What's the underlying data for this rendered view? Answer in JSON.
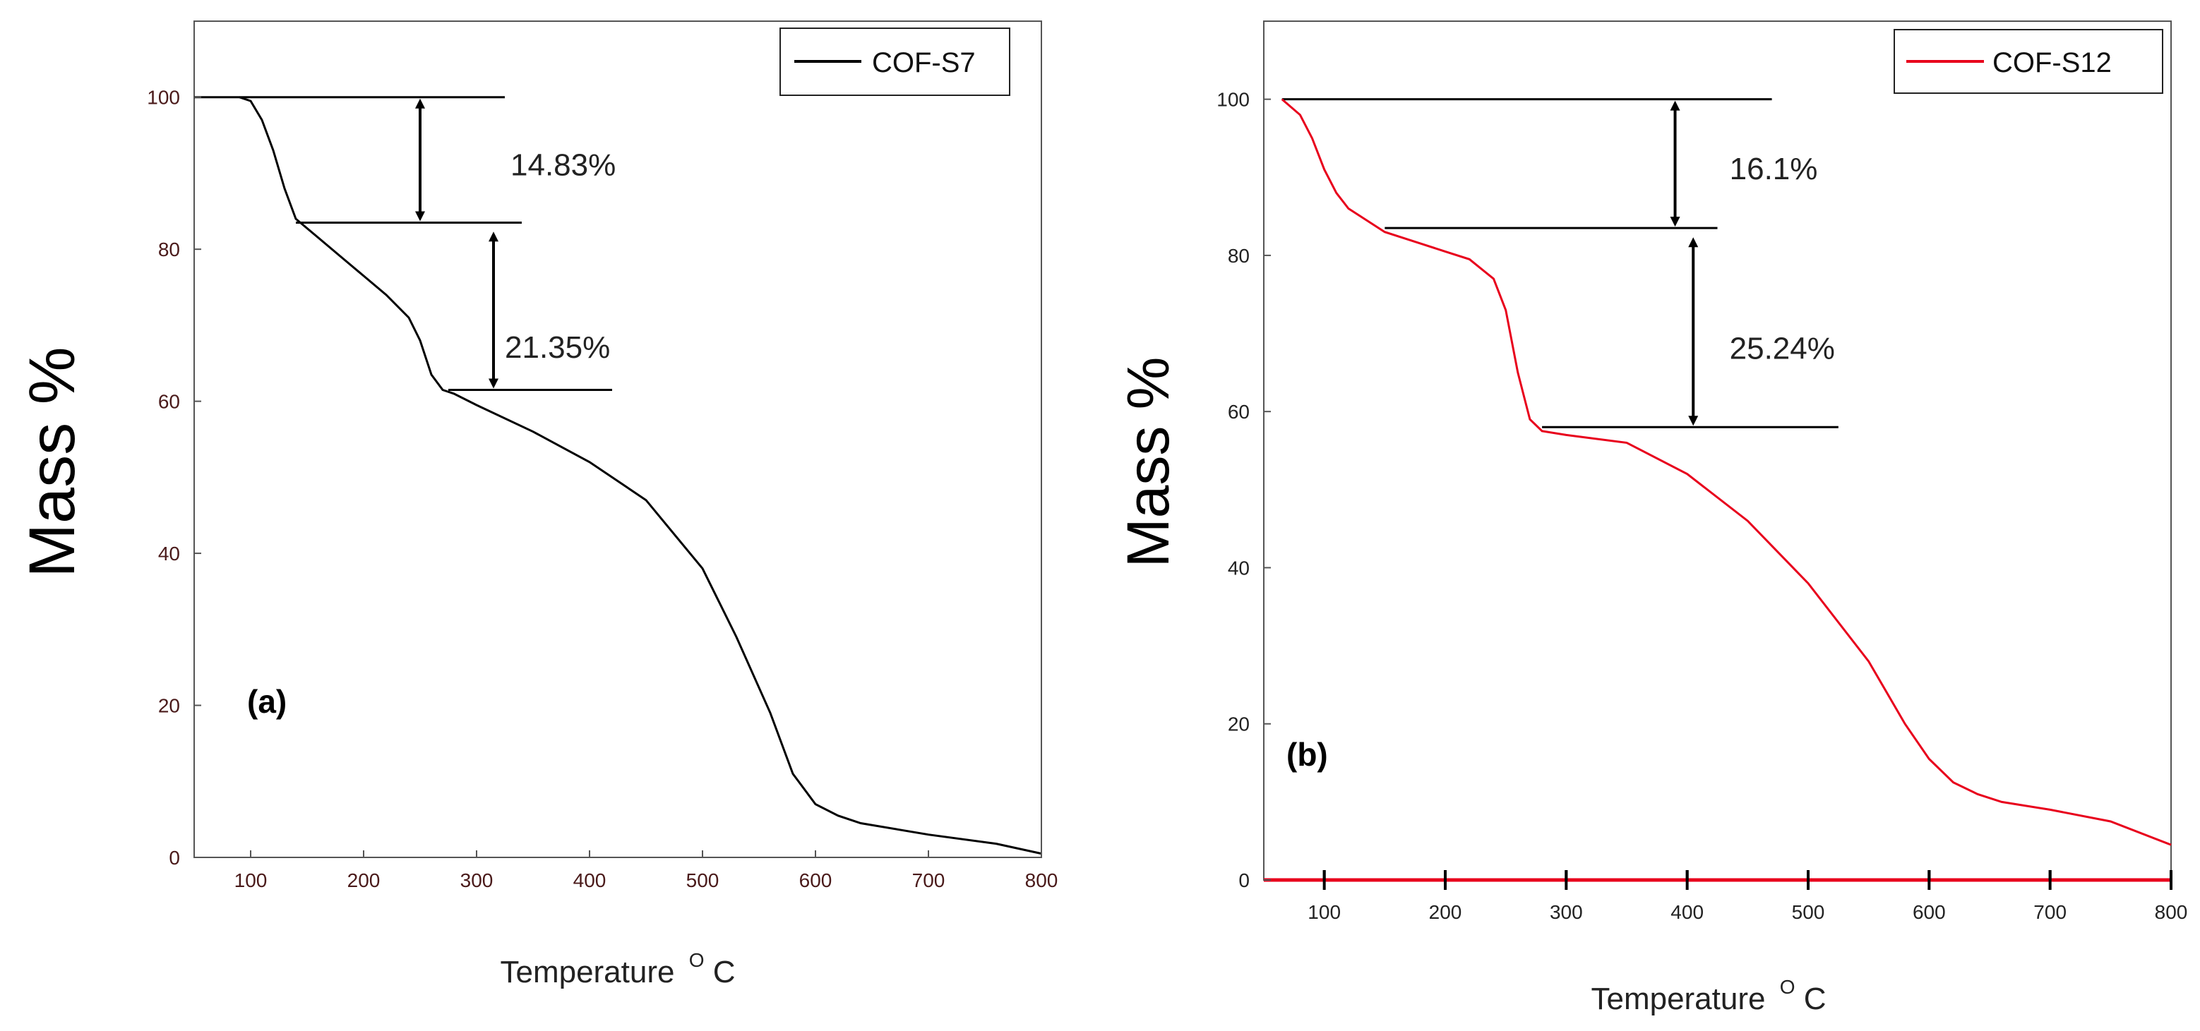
{
  "chart_data": [
    {
      "type": "line",
      "panel_label": "(a)",
      "legend": "COF-S7",
      "legend_position": "top-right",
      "line_color": "#000000",
      "xlabel": "Temperature",
      "xlabel_unit_sup": "O",
      "xlabel_unit": "C",
      "ylabel": "Mass %",
      "xlim": [
        50,
        800
      ],
      "ylim": [
        0,
        110
      ],
      "x_ticks": [
        100,
        200,
        300,
        400,
        500,
        600,
        700,
        800
      ],
      "y_ticks": [
        0,
        20,
        40,
        60,
        80,
        100
      ],
      "x": [
        90,
        100,
        110,
        120,
        130,
        140,
        160,
        180,
        200,
        220,
        240,
        250,
        260,
        270,
        280,
        300,
        350,
        400,
        450,
        500,
        530,
        560,
        580,
        600,
        620,
        640,
        700,
        760,
        800
      ],
      "y": [
        100,
        99.5,
        97,
        93,
        88,
        84,
        81.5,
        79,
        76.5,
        74,
        71,
        68,
        63.5,
        61.5,
        61,
        59.5,
        56,
        52,
        47,
        38,
        29,
        19,
        11,
        7,
        5.5,
        4.5,
        3,
        1.8,
        0.5
      ],
      "annotations": [
        {
          "text": "14.83%",
          "x": 330,
          "y": 91,
          "from": 100,
          "to": 83.5,
          "arrow_x": 250
        },
        {
          "text": "21.35%",
          "x": 325,
          "y": 67,
          "from": 82.5,
          "to": 61.5,
          "arrow_x": 315
        }
      ],
      "reference_lines": [
        {
          "y": 100,
          "x_from": 50,
          "x_to": 325
        },
        {
          "y": 83.5,
          "x_from": 140,
          "x_to": 340
        },
        {
          "y": 61.5,
          "x_from": 275,
          "x_to": 420
        }
      ]
    },
    {
      "type": "line",
      "panel_label": "(b)",
      "legend": "COF-S12",
      "legend_position": "top-right",
      "line_color": "#e8001c",
      "xlabel": "Temperature",
      "xlabel_unit_sup": "O",
      "xlabel_unit": "C",
      "ylabel": "Mass %",
      "xlim": [
        50,
        800
      ],
      "ylim": [
        0,
        110
      ],
      "x_ticks": [
        100,
        200,
        300,
        400,
        500,
        600,
        700,
        800
      ],
      "y_ticks": [
        0,
        20,
        40,
        60,
        80,
        100
      ],
      "x": [
        65,
        80,
        90,
        100,
        110,
        120,
        130,
        150,
        180,
        200,
        220,
        240,
        250,
        260,
        270,
        280,
        300,
        350,
        400,
        450,
        500,
        550,
        580,
        600,
        620,
        640,
        660,
        700,
        750,
        800
      ],
      "y": [
        100,
        98,
        95,
        91,
        88,
        86,
        85,
        83,
        81.5,
        80.5,
        79.5,
        77,
        73,
        65,
        59,
        57.5,
        57,
        56,
        52,
        46,
        38,
        28,
        20,
        15.5,
        12.5,
        11,
        10,
        9,
        7.5,
        4.5
      ],
      "annotations": [
        {
          "text": "16.1%",
          "x": 435,
          "y": 91,
          "from": 100,
          "to": 83.5,
          "arrow_x": 390
        },
        {
          "text": "25.24%",
          "x": 435,
          "y": 68,
          "from": 82.5,
          "to": 58,
          "arrow_x": 405
        }
      ],
      "reference_lines": [
        {
          "y": 100,
          "x_from": 65,
          "x_to": 470
        },
        {
          "y": 83.5,
          "x_from": 150,
          "x_to": 425
        },
        {
          "y": 58,
          "x_from": 280,
          "x_to": 525
        }
      ]
    }
  ]
}
